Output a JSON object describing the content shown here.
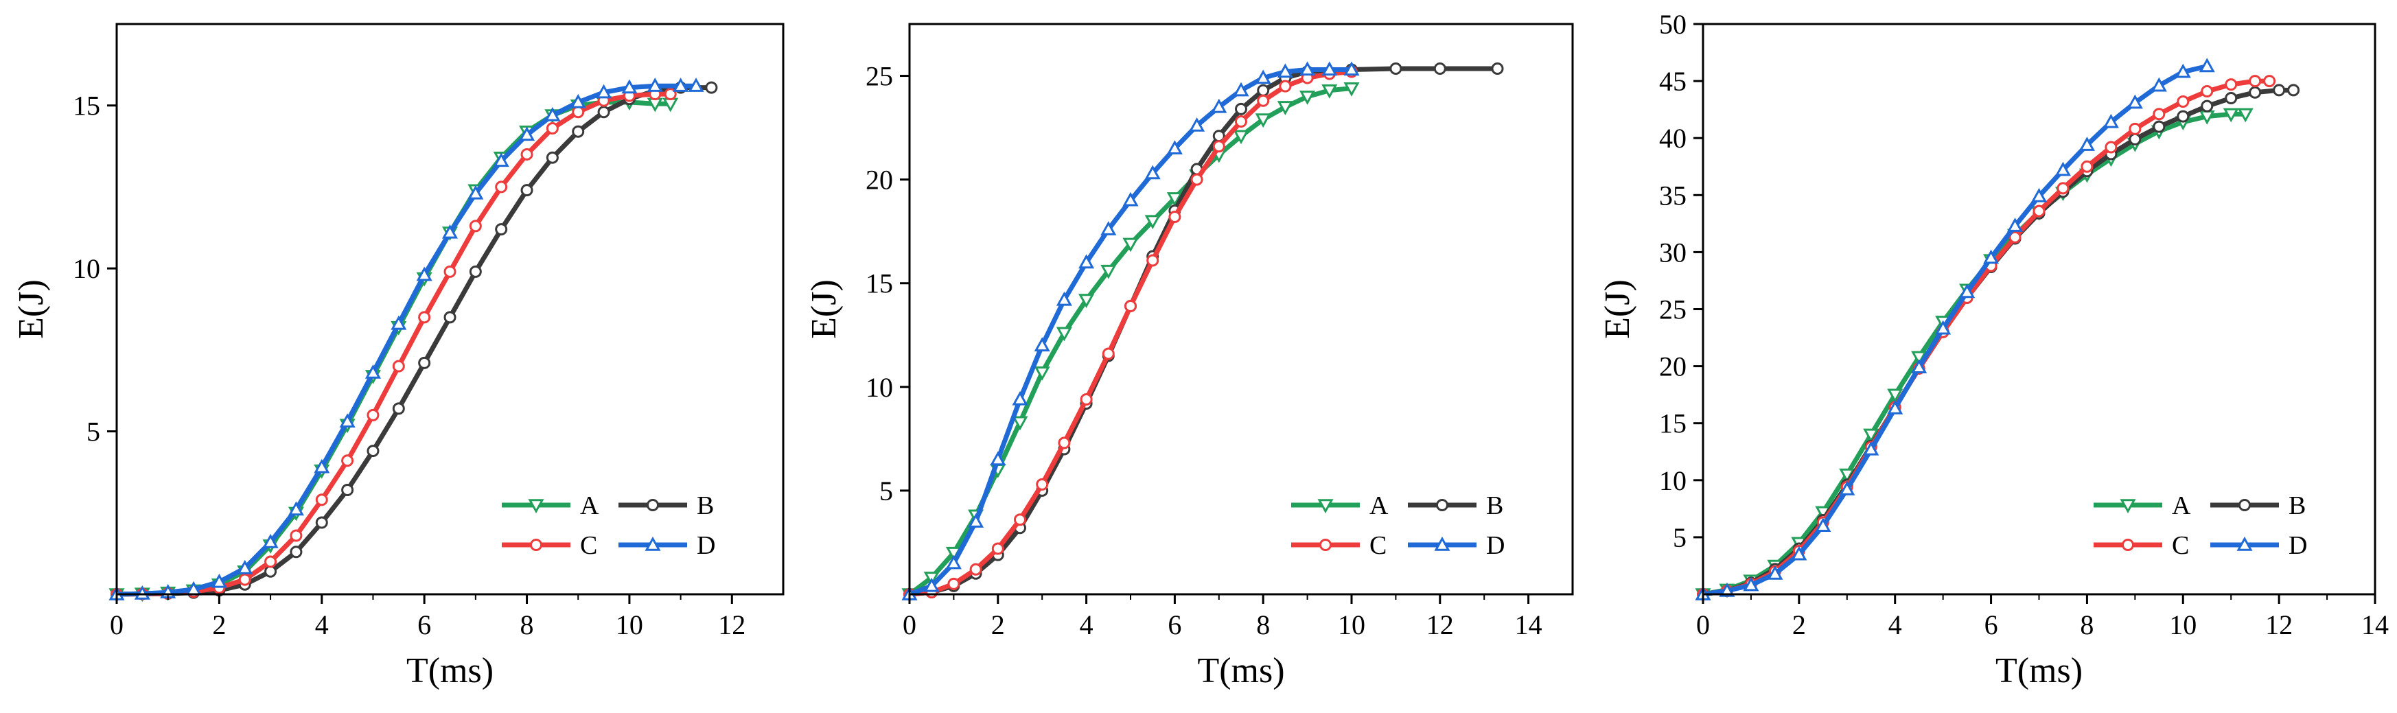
{
  "figure": {
    "description_free": true,
    "colors": {
      "A": "#22a05a",
      "B": "#3a3a3a",
      "C": "#ee3b3b",
      "D": "#1f6ad6",
      "axis": "#000000",
      "background": "#ffffff"
    }
  },
  "chart_data": [
    {
      "type": "line",
      "title": "",
      "xlabel": "T(ms)",
      "ylabel": "E(J)",
      "xlim": [
        0,
        13
      ],
      "ylim": [
        0,
        17.5
      ],
      "xticks": [
        0,
        2,
        4,
        6,
        8,
        10,
        12
      ],
      "yticks": [
        5,
        10,
        15
      ],
      "legend": {
        "placement": "bottom-right",
        "rows": [
          [
            "A",
            "B"
          ],
          [
            "C",
            "D"
          ]
        ]
      },
      "series": [
        {
          "name": "A",
          "marker": "triangle-down",
          "x": [
            0,
            0.5,
            1,
            1.5,
            2,
            2.5,
            3,
            3.5,
            4,
            4.5,
            5,
            5.5,
            6,
            6.5,
            7,
            7.5,
            8,
            8.5,
            9,
            9.5,
            10,
            10.5,
            10.8
          ],
          "y": [
            0,
            0.02,
            0.05,
            0.12,
            0.3,
            0.7,
            1.5,
            2.5,
            3.8,
            5.2,
            6.7,
            8.2,
            9.7,
            11.1,
            12.4,
            13.4,
            14.2,
            14.7,
            15.0,
            15.1,
            15.1,
            15.05,
            15.05
          ]
        },
        {
          "name": "B",
          "marker": "circle",
          "x": [
            0,
            0.5,
            1,
            1.5,
            2,
            2.5,
            3,
            3.5,
            4,
            4.5,
            5,
            5.5,
            6,
            6.5,
            7,
            7.5,
            8,
            8.5,
            9,
            9.5,
            10,
            10.5,
            11,
            11.6
          ],
          "y": [
            0,
            0.01,
            0.02,
            0.05,
            0.12,
            0.3,
            0.7,
            1.3,
            2.2,
            3.2,
            4.4,
            5.7,
            7.1,
            8.5,
            9.9,
            11.2,
            12.4,
            13.4,
            14.2,
            14.8,
            15.2,
            15.45,
            15.55,
            15.55
          ]
        },
        {
          "name": "C",
          "marker": "circle",
          "x": [
            0,
            0.5,
            1,
            1.5,
            2,
            2.5,
            3,
            3.5,
            4,
            4.5,
            5,
            5.5,
            6,
            6.5,
            7,
            7.5,
            8,
            8.5,
            9,
            9.5,
            10,
            10.5,
            10.8
          ],
          "y": [
            0,
            0.01,
            0.03,
            0.08,
            0.2,
            0.45,
            1.0,
            1.8,
            2.9,
            4.1,
            5.5,
            7.0,
            8.5,
            9.9,
            11.3,
            12.5,
            13.5,
            14.3,
            14.8,
            15.15,
            15.3,
            15.35,
            15.35
          ]
        },
        {
          "name": "D",
          "marker": "triangle-up",
          "x": [
            0,
            0.5,
            1,
            1.5,
            2,
            2.5,
            3,
            3.5,
            4,
            4.5,
            5,
            5.5,
            6,
            6.5,
            7,
            7.5,
            8,
            8.5,
            9,
            9.5,
            10,
            10.5,
            11,
            11.3
          ],
          "y": [
            0,
            0.02,
            0.06,
            0.15,
            0.38,
            0.8,
            1.6,
            2.6,
            3.9,
            5.3,
            6.8,
            8.3,
            9.8,
            11.1,
            12.3,
            13.3,
            14.1,
            14.7,
            15.1,
            15.4,
            15.55,
            15.6,
            15.6,
            15.6
          ]
        }
      ]
    },
    {
      "type": "line",
      "title": "",
      "xlabel": "T(ms)",
      "ylabel": "E(J)",
      "xlim": [
        0,
        15
      ],
      "ylim": [
        0,
        27.5
      ],
      "xticks": [
        0,
        2,
        4,
        6,
        8,
        10,
        12,
        14
      ],
      "yticks": [
        5,
        10,
        15,
        20,
        25
      ],
      "legend": {
        "placement": "bottom-right",
        "rows": [
          [
            "A",
            "B"
          ],
          [
            "C",
            "D"
          ]
        ]
      },
      "series": [
        {
          "name": "A",
          "marker": "triangle-down",
          "x": [
            0,
            0.5,
            1,
            1.5,
            2,
            2.5,
            3,
            3.5,
            4,
            4.5,
            5,
            5.5,
            6,
            6.5,
            7,
            7.5,
            8,
            8.5,
            9,
            9.5,
            10
          ],
          "y": [
            0,
            0.8,
            2.0,
            3.8,
            6.0,
            8.3,
            10.7,
            12.6,
            14.2,
            15.6,
            16.9,
            18.0,
            19.1,
            20.2,
            21.2,
            22.1,
            22.9,
            23.5,
            24.0,
            24.3,
            24.4
          ]
        },
        {
          "name": "B",
          "marker": "circle",
          "x": [
            0,
            0.5,
            1,
            1.5,
            2,
            2.5,
            3,
            3.5,
            4,
            4.5,
            5,
            5.5,
            6,
            6.5,
            7,
            7.5,
            8,
            8.5,
            9,
            10,
            11,
            12,
            13.3
          ],
          "y": [
            0,
            0.1,
            0.4,
            1.0,
            1.9,
            3.2,
            5.0,
            7.0,
            9.2,
            11.5,
            13.9,
            16.3,
            18.5,
            20.5,
            22.1,
            23.4,
            24.3,
            24.9,
            25.2,
            25.3,
            25.35,
            25.35,
            25.35
          ]
        },
        {
          "name": "C",
          "marker": "circle",
          "x": [
            0,
            0.5,
            1,
            1.5,
            2,
            2.5,
            3,
            3.5,
            4,
            4.5,
            5,
            5.5,
            6,
            6.5,
            7,
            7.5,
            8,
            8.5,
            9,
            9.5,
            10
          ],
          "y": [
            0,
            0.1,
            0.5,
            1.2,
            2.2,
            3.6,
            5.3,
            7.3,
            9.4,
            11.6,
            13.9,
            16.1,
            18.2,
            20.0,
            21.6,
            22.8,
            23.8,
            24.5,
            24.9,
            25.1,
            25.2
          ]
        },
        {
          "name": "D",
          "marker": "triangle-up",
          "x": [
            0,
            0.5,
            1,
            1.5,
            2,
            2.5,
            3,
            3.5,
            4,
            4.5,
            5,
            5.5,
            6,
            6.5,
            7,
            7.5,
            8,
            8.5,
            9,
            9.5,
            10
          ],
          "y": [
            0,
            0.4,
            1.5,
            3.5,
            6.5,
            9.4,
            12.0,
            14.2,
            16.0,
            17.6,
            19.0,
            20.3,
            21.5,
            22.6,
            23.5,
            24.3,
            24.9,
            25.2,
            25.3,
            25.3,
            25.3
          ]
        }
      ]
    },
    {
      "type": "line",
      "title": "",
      "xlabel": "T(ms)",
      "ylabel": "E(J)",
      "xlim": [
        0,
        14
      ],
      "ylim": [
        0,
        50
      ],
      "xticks": [
        0,
        2,
        4,
        6,
        8,
        10,
        12,
        14
      ],
      "yticks": [
        5,
        10,
        15,
        20,
        25,
        30,
        35,
        40,
        45,
        50
      ],
      "legend": {
        "placement": "bottom-right",
        "rows": [
          [
            "A",
            "B"
          ],
          [
            "C",
            "D"
          ]
        ]
      },
      "series": [
        {
          "name": "A",
          "marker": "triangle-down",
          "x": [
            0,
            0.5,
            1,
            1.5,
            2,
            2.5,
            3,
            3.5,
            4,
            4.5,
            5,
            5.5,
            6,
            6.5,
            7,
            7.5,
            8,
            8.5,
            9,
            9.5,
            10,
            10.5,
            11,
            11.3
          ],
          "y": [
            0,
            0.4,
            1.2,
            2.5,
            4.5,
            7.2,
            10.5,
            14.0,
            17.5,
            20.8,
            23.9,
            26.7,
            29.3,
            31.5,
            33.5,
            35.2,
            36.8,
            38.2,
            39.5,
            40.6,
            41.4,
            41.9,
            42.1,
            42.1
          ]
        },
        {
          "name": "B",
          "marker": "circle",
          "x": [
            0,
            0.5,
            1,
            1.5,
            2,
            2.5,
            3,
            3.5,
            4,
            4.5,
            5,
            5.5,
            6,
            6.5,
            7,
            7.5,
            8,
            8.5,
            9,
            9.5,
            10,
            10.5,
            11,
            11.5,
            12,
            12.3
          ],
          "y": [
            0,
            0.3,
            1.0,
            2.2,
            4.0,
            6.5,
            9.6,
            13.0,
            16.4,
            19.8,
            23.0,
            26.0,
            28.7,
            31.2,
            33.4,
            35.3,
            37.1,
            38.6,
            39.9,
            41.0,
            41.9,
            42.8,
            43.5,
            44.0,
            44.2,
            44.2
          ]
        },
        {
          "name": "C",
          "marker": "circle",
          "x": [
            0,
            0.5,
            1,
            1.5,
            2,
            2.5,
            3,
            3.5,
            4,
            4.5,
            5,
            5.5,
            6,
            6.5,
            7,
            7.5,
            8,
            8.5,
            9,
            9.5,
            10,
            10.5,
            11,
            11.5,
            11.8
          ],
          "y": [
            0,
            0.3,
            0.9,
            2.0,
            3.8,
            6.3,
            9.4,
            12.9,
            16.4,
            19.8,
            23.0,
            26.0,
            28.8,
            31.3,
            33.6,
            35.6,
            37.5,
            39.2,
            40.8,
            42.1,
            43.2,
            44.1,
            44.7,
            45.0,
            45.0
          ]
        },
        {
          "name": "D",
          "marker": "triangle-up",
          "x": [
            0,
            0.5,
            1,
            1.5,
            2,
            2.5,
            3,
            3.5,
            4,
            4.5,
            5,
            5.5,
            6,
            6.5,
            7,
            7.5,
            8,
            8.5,
            9,
            9.5,
            10,
            10.5
          ],
          "y": [
            0,
            0.3,
            0.8,
            1.8,
            3.5,
            6.0,
            9.2,
            12.7,
            16.3,
            19.9,
            23.3,
            26.5,
            29.5,
            32.3,
            34.9,
            37.2,
            39.4,
            41.4,
            43.1,
            44.6,
            45.8,
            46.3
          ]
        }
      ]
    }
  ]
}
